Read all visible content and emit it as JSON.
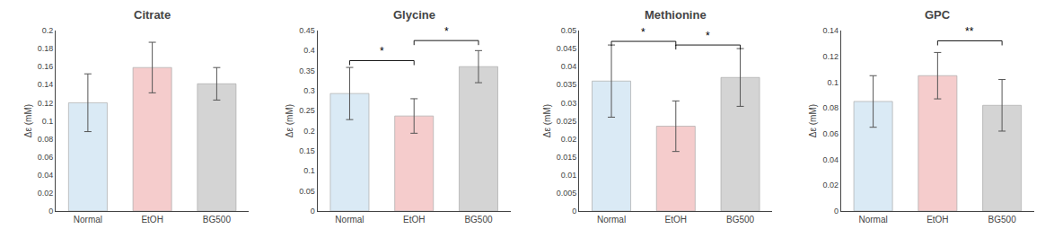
{
  "chart_data": [
    {
      "type": "bar",
      "title": "Citrate",
      "categories": [
        "Normal",
        "EtOH",
        "BG500"
      ],
      "values": [
        0.12,
        0.159,
        0.141
      ],
      "errors": [
        0.032,
        0.028,
        0.018
      ],
      "colors": [
        "#daeaf5",
        "#f5cccc",
        "#d4d4d4"
      ],
      "ylabel": "Δε (mM)",
      "ylim": [
        0,
        0.2
      ],
      "yticks": [
        0,
        0.02,
        0.04,
        0.06,
        0.08,
        0.1,
        0.12,
        0.14,
        0.16,
        0.18,
        0.2
      ],
      "grid": false,
      "annotations": []
    },
    {
      "type": "bar",
      "title": "Glycine",
      "categories": [
        "Normal",
        "EtOH",
        "BG500"
      ],
      "values": [
        0.293,
        0.237,
        0.36
      ],
      "errors": [
        0.065,
        0.043,
        0.04
      ],
      "colors": [
        "#daeaf5",
        "#f5cccc",
        "#d4d4d4"
      ],
      "ylabel": "Δε (mM)",
      "ylim": [
        0,
        0.45
      ],
      "yticks": [
        0,
        0.05,
        0.1,
        0.15,
        0.2,
        0.25,
        0.3,
        0.35,
        0.4,
        0.45
      ],
      "grid": false,
      "annotations": [
        {
          "text": "*",
          "between": [
            "Normal",
            "EtOH"
          ],
          "y_bracket": 0.375,
          "y_text": 0.378
        },
        {
          "text": "*",
          "between": [
            "EtOH",
            "BG500"
          ],
          "y_bracket": 0.425,
          "y_text": 0.428
        }
      ]
    },
    {
      "type": "bar",
      "title": "Methionine",
      "categories": [
        "Normal",
        "EtOH",
        "BG500"
      ],
      "values": [
        0.036,
        0.0235,
        0.037
      ],
      "errors": [
        0.01,
        0.007,
        0.008
      ],
      "colors": [
        "#daeaf5",
        "#f5cccc",
        "#d4d4d4"
      ],
      "ylabel": "Δε (mM)",
      "ylim": [
        0,
        0.05
      ],
      "yticks": [
        0,
        0.005,
        0.01,
        0.015,
        0.02,
        0.025,
        0.03,
        0.035,
        0.04,
        0.045,
        0.05
      ],
      "grid": false,
      "annotations": [
        {
          "text": "*",
          "between": [
            "Normal",
            "EtOH"
          ],
          "y_bracket": 0.047,
          "y_text": 0.0472
        },
        {
          "text": "*",
          "between": [
            "EtOH",
            "BG500"
          ],
          "y_bracket": 0.046,
          "y_text": 0.0462
        }
      ]
    },
    {
      "type": "bar",
      "title": "GPC",
      "categories": [
        "Normal",
        "EtOH",
        "BG500"
      ],
      "values": [
        0.085,
        0.105,
        0.082
      ],
      "errors": [
        0.02,
        0.018,
        0.02
      ],
      "colors": [
        "#daeaf5",
        "#f5cccc",
        "#d4d4d4"
      ],
      "ylabel": "Δε (mM)",
      "ylim": [
        0,
        0.14
      ],
      "yticks": [
        0,
        0.02,
        0.04,
        0.06,
        0.08,
        0.1,
        0.12,
        0.14
      ],
      "grid": false,
      "annotations": [
        {
          "text": "**",
          "between": [
            "EtOH",
            "BG500"
          ],
          "y_bracket": 0.132,
          "y_text": 0.133
        }
      ]
    }
  ]
}
